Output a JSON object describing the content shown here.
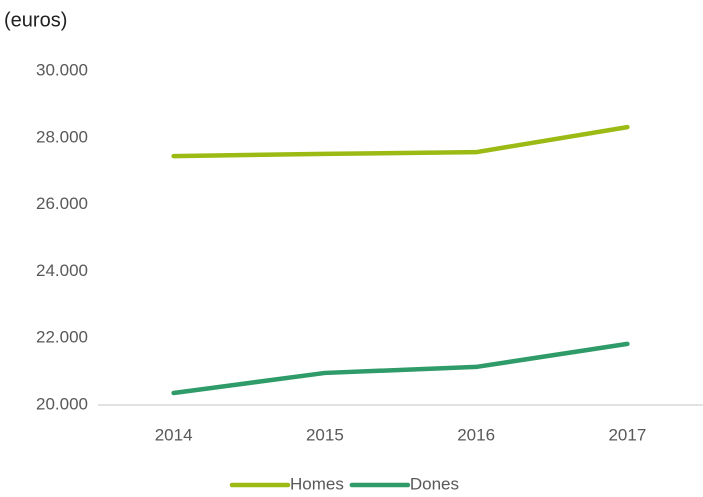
{
  "chart_data": {
    "type": "line",
    "y_label": "(euros)",
    "categories": [
      "2014",
      "2015",
      "2016",
      "2017"
    ],
    "series": [
      {
        "name": "Homes",
        "color": "#9cba14",
        "values": [
          27450,
          27520,
          27570,
          28320
        ]
      },
      {
        "name": "Dones",
        "color": "#2f9b69",
        "values": [
          20360,
          20960,
          21140,
          21830
        ]
      }
    ],
    "ylim": [
      20000,
      30000
    ],
    "yticks": [
      {
        "value": 20000,
        "label": "20.000"
      },
      {
        "value": 22000,
        "label": "22.000"
      },
      {
        "value": 24000,
        "label": "24.000"
      },
      {
        "value": 26000,
        "label": "26.000"
      },
      {
        "value": 28000,
        "label": "28.000"
      },
      {
        "value": 30000,
        "label": "30.000"
      }
    ],
    "grid": false,
    "legend": "bottom"
  }
}
